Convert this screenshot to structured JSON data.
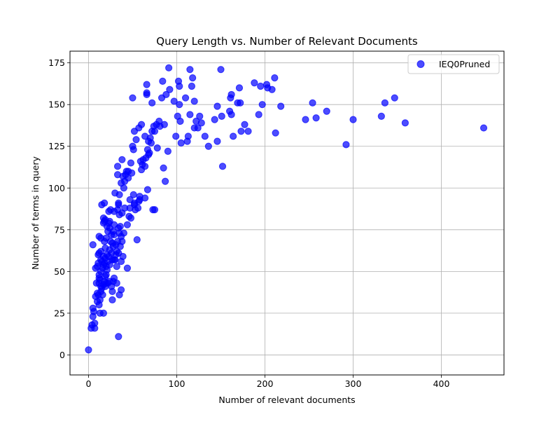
{
  "chart_data": {
    "type": "scatter",
    "title": "Query Length vs. Number of Relevant Documents",
    "xlabel": "Number of relevant documents",
    "ylabel": "Number of terms in query",
    "xlim": [
      -21,
      471
    ],
    "ylim": [
      -12,
      182
    ],
    "xticks": [
      0,
      100,
      200,
      300,
      400
    ],
    "yticks": [
      0,
      25,
      50,
      75,
      100,
      125,
      150,
      175
    ],
    "grid": true,
    "legend_position": "top-right",
    "series": [
      {
        "name": "IEQ0Pruned",
        "color": "#0000ff",
        "points": [
          [
            0,
            3
          ],
          [
            3,
            16
          ],
          [
            4,
            18
          ],
          [
            5,
            23
          ],
          [
            5,
            28
          ],
          [
            5,
            66
          ],
          [
            6,
            26
          ],
          [
            7,
            16
          ],
          [
            7,
            19
          ],
          [
            8,
            35
          ],
          [
            8,
            52
          ],
          [
            9,
            43
          ],
          [
            10,
            32
          ],
          [
            10,
            37
          ],
          [
            10,
            53
          ],
          [
            11,
            36
          ],
          [
            11,
            55
          ],
          [
            11,
            60
          ],
          [
            12,
            30
          ],
          [
            12,
            43
          ],
          [
            12,
            46
          ],
          [
            12,
            48
          ],
          [
            12,
            61
          ],
          [
            12,
            71
          ],
          [
            13,
            25
          ],
          [
            13,
            33
          ],
          [
            13,
            45
          ],
          [
            14,
            38
          ],
          [
            14,
            41
          ],
          [
            14,
            50
          ],
          [
            14,
            57
          ],
          [
            14,
            62
          ],
          [
            14,
            70
          ],
          [
            15,
            40
          ],
          [
            15,
            56
          ],
          [
            15,
            90
          ],
          [
            16,
            36
          ],
          [
            16,
            52
          ],
          [
            17,
            25
          ],
          [
            17,
            42
          ],
          [
            17,
            54
          ],
          [
            17,
            59
          ],
          [
            17,
            79
          ],
          [
            17,
            82
          ],
          [
            18,
            44
          ],
          [
            18,
            55
          ],
          [
            18,
            68
          ],
          [
            18,
            80
          ],
          [
            18,
            91
          ],
          [
            19,
            41
          ],
          [
            19,
            47
          ],
          [
            19,
            58
          ],
          [
            19,
            64
          ],
          [
            19,
            81
          ],
          [
            20,
            43
          ],
          [
            20,
            48
          ],
          [
            20,
            53
          ],
          [
            20,
            70
          ],
          [
            21,
            51
          ],
          [
            21,
            60
          ],
          [
            21,
            77
          ],
          [
            22,
            43
          ],
          [
            22,
            56
          ],
          [
            22,
            74
          ],
          [
            23,
            59
          ],
          [
            23,
            79
          ],
          [
            23,
            86
          ],
          [
            24,
            44
          ],
          [
            24,
            54
          ],
          [
            24,
            63
          ],
          [
            24,
            76
          ],
          [
            24,
            80
          ],
          [
            25,
            68
          ],
          [
            25,
            87
          ],
          [
            26,
            41
          ],
          [
            26,
            61
          ],
          [
            26,
            72
          ],
          [
            27,
            33
          ],
          [
            27,
            38
          ],
          [
            27,
            57
          ],
          [
            27,
            67
          ],
          [
            28,
            44
          ],
          [
            28,
            65
          ],
          [
            28,
            74
          ],
          [
            29,
            46
          ],
          [
            29,
            57
          ],
          [
            29,
            72
          ],
          [
            29,
            78
          ],
          [
            29,
            86
          ],
          [
            30,
            57
          ],
          [
            30,
            97
          ],
          [
            31,
            60
          ],
          [
            31,
            66
          ],
          [
            32,
            43
          ],
          [
            32,
            53
          ],
          [
            32,
            62
          ],
          [
            33,
            68
          ],
          [
            33,
            87
          ],
          [
            33,
            108
          ],
          [
            33,
            113
          ],
          [
            34,
            11
          ],
          [
            34,
            61
          ],
          [
            34,
            76
          ],
          [
            34,
            90
          ],
          [
            34,
            91
          ],
          [
            35,
            36
          ],
          [
            35,
            73
          ],
          [
            35,
            84
          ],
          [
            35,
            96
          ],
          [
            36,
            65
          ],
          [
            36,
            77
          ],
          [
            37,
            39
          ],
          [
            37,
            56
          ],
          [
            37,
            71
          ],
          [
            37,
            103
          ],
          [
            38,
            68
          ],
          [
            38,
            85
          ],
          [
            38,
            117
          ],
          [
            39,
            59
          ],
          [
            39,
            107
          ],
          [
            40,
            73
          ],
          [
            40,
            100
          ],
          [
            41,
            88
          ],
          [
            41,
            104
          ],
          [
            42,
            108
          ],
          [
            43,
            110
          ],
          [
            44,
            52
          ],
          [
            44,
            78
          ],
          [
            45,
            110
          ],
          [
            45,
            106
          ],
          [
            46,
            83
          ],
          [
            47,
            88
          ],
          [
            47,
            93
          ],
          [
            48,
            82
          ],
          [
            48,
            115
          ],
          [
            49,
            109
          ],
          [
            50,
            125
          ],
          [
            50,
            154
          ],
          [
            51,
            96
          ],
          [
            51,
            123
          ],
          [
            52,
            91
          ],
          [
            52,
            90
          ],
          [
            52,
            134
          ],
          [
            53,
            87
          ],
          [
            54,
            129
          ],
          [
            55,
            69
          ],
          [
            56,
            88
          ],
          [
            57,
            92
          ],
          [
            57,
            136
          ],
          [
            58,
            93
          ],
          [
            58,
            95
          ],
          [
            59,
            116
          ],
          [
            60,
            111
          ],
          [
            60,
            138
          ],
          [
            61,
            114
          ],
          [
            62,
            117
          ],
          [
            64,
            94
          ],
          [
            64,
            113
          ],
          [
            64,
            131
          ],
          [
            65,
            118
          ],
          [
            66,
            157
          ],
          [
            66,
            162
          ],
          [
            66,
            156
          ],
          [
            67,
            123
          ],
          [
            67,
            99
          ],
          [
            68,
            128
          ],
          [
            68,
            120
          ],
          [
            69,
            121
          ],
          [
            70,
            130
          ],
          [
            71,
            127
          ],
          [
            72,
            151
          ],
          [
            72,
            134
          ],
          [
            73,
            87
          ],
          [
            74,
            137
          ],
          [
            75,
            87
          ],
          [
            75,
            134
          ],
          [
            77,
            138
          ],
          [
            78,
            124
          ],
          [
            80,
            140
          ],
          [
            81,
            137
          ],
          [
            83,
            154
          ],
          [
            84,
            164
          ],
          [
            85,
            112
          ],
          [
            86,
            138
          ],
          [
            87,
            104
          ],
          [
            88,
            156
          ],
          [
            90,
            122
          ],
          [
            91,
            172
          ],
          [
            92,
            159
          ],
          [
            97,
            152
          ],
          [
            99,
            131
          ],
          [
            101,
            143
          ],
          [
            102,
            164
          ],
          [
            103,
            161
          ],
          [
            103,
            150
          ],
          [
            104,
            140
          ],
          [
            105,
            127
          ],
          [
            110,
            154
          ],
          [
            112,
            128
          ],
          [
            113,
            131
          ],
          [
            115,
            171
          ],
          [
            115,
            144
          ],
          [
            117,
            161
          ],
          [
            118,
            166
          ],
          [
            120,
            136
          ],
          [
            120,
            152
          ],
          [
            122,
            140
          ],
          [
            124,
            136
          ],
          [
            126,
            143
          ],
          [
            128,
            139
          ],
          [
            132,
            131
          ],
          [
            136,
            125
          ],
          [
            143,
            141
          ],
          [
            146,
            149
          ],
          [
            146,
            128
          ],
          [
            150,
            171
          ],
          [
            151,
            143
          ],
          [
            152,
            113
          ],
          [
            160,
            146
          ],
          [
            161,
            154
          ],
          [
            162,
            156
          ],
          [
            162,
            144
          ],
          [
            164,
            131
          ],
          [
            169,
            151
          ],
          [
            171,
            160
          ],
          [
            172,
            151
          ],
          [
            173,
            134
          ],
          [
            177,
            138
          ],
          [
            181,
            134
          ],
          [
            188,
            163
          ],
          [
            193,
            144
          ],
          [
            195,
            161
          ],
          [
            197,
            150
          ],
          [
            202,
            162
          ],
          [
            203,
            160
          ],
          [
            208,
            159
          ],
          [
            211,
            166
          ],
          [
            212,
            133
          ],
          [
            218,
            149
          ],
          [
            246,
            141
          ],
          [
            254,
            151
          ],
          [
            258,
            142
          ],
          [
            270,
            146
          ],
          [
            292,
            126
          ],
          [
            300,
            141
          ],
          [
            332,
            143
          ],
          [
            336,
            151
          ],
          [
            347,
            154
          ],
          [
            359,
            139
          ],
          [
            448,
            136
          ]
        ]
      }
    ]
  }
}
